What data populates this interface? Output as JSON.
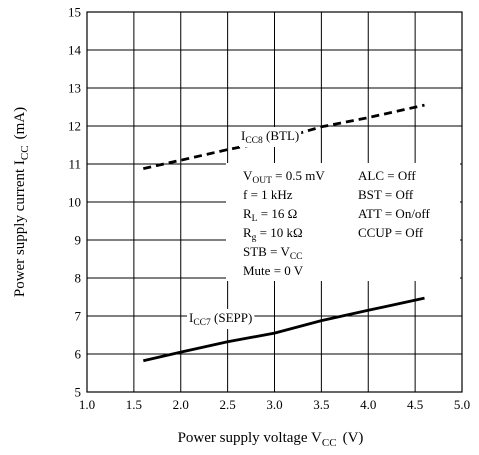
{
  "chart_data": {
    "type": "line",
    "x_title": {
      "main": "Power supply voltage  V",
      "sub": "CC",
      "unit": "(V)"
    },
    "y_title": {
      "main": "Power supply current  I",
      "sub": "CC",
      "unit": "(mA)"
    },
    "xlim": [
      1.0,
      5.0
    ],
    "ylim": [
      5,
      15
    ],
    "x_ticks": [
      "1.0",
      "1.5",
      "2.0",
      "2.5",
      "3.0",
      "3.5",
      "4.0",
      "4.5",
      "5.0"
    ],
    "y_ticks": [
      "5",
      "6",
      "7",
      "8",
      "9",
      "10",
      "11",
      "12",
      "13",
      "14",
      "15"
    ],
    "grid": true,
    "series": [
      {
        "name": "I_CC8 (BTL)",
        "label_main": "I",
        "label_sub": "CC8",
        "label_suffix": " (BTL)",
        "style": "dashed",
        "x": [
          1.6,
          2.0,
          2.5,
          3.0,
          3.5,
          4.0,
          4.6
        ],
        "y": [
          10.88,
          11.1,
          11.38,
          11.62,
          11.98,
          12.22,
          12.55
        ]
      },
      {
        "name": "I_CC7 (SEPP)",
        "label_main": "I",
        "label_sub": "CC7",
        "label_suffix": " (SEPP)",
        "style": "solid",
        "x": [
          1.6,
          2.0,
          2.5,
          3.0,
          3.5,
          4.0,
          4.6
        ],
        "y": [
          5.82,
          6.05,
          6.32,
          6.55,
          6.88,
          7.15,
          7.47
        ]
      }
    ],
    "conditions": [
      {
        "left_main": "V",
        "left_sub": "OUT",
        "left_rest": " = 0.5 mV",
        "right_main": "ALC = Off",
        "right_sub": "",
        "right_rest": ""
      },
      {
        "left_main": "f = 1 kHz",
        "left_sub": "",
        "left_rest": "",
        "right_main": "BST = Off",
        "right_sub": "",
        "right_rest": ""
      },
      {
        "left_main": "R",
        "left_sub": "L",
        "left_rest": " = 16 Ω",
        "right_main": "ATT = On/off",
        "right_sub": "",
        "right_rest": ""
      },
      {
        "left_main": "R",
        "left_sub": "g",
        "left_rest": " = 10 kΩ",
        "right_main": "CCUP = Off",
        "right_sub": "",
        "right_rest": ""
      },
      {
        "left_main": "STB = V",
        "left_sub": "CC",
        "left_rest": "",
        "right_main": "",
        "right_sub": "",
        "right_rest": ""
      },
      {
        "left_main": "Mute = 0 V",
        "left_sub": "",
        "left_rest": "",
        "right_main": "",
        "right_sub": "",
        "right_rest": ""
      }
    ]
  }
}
